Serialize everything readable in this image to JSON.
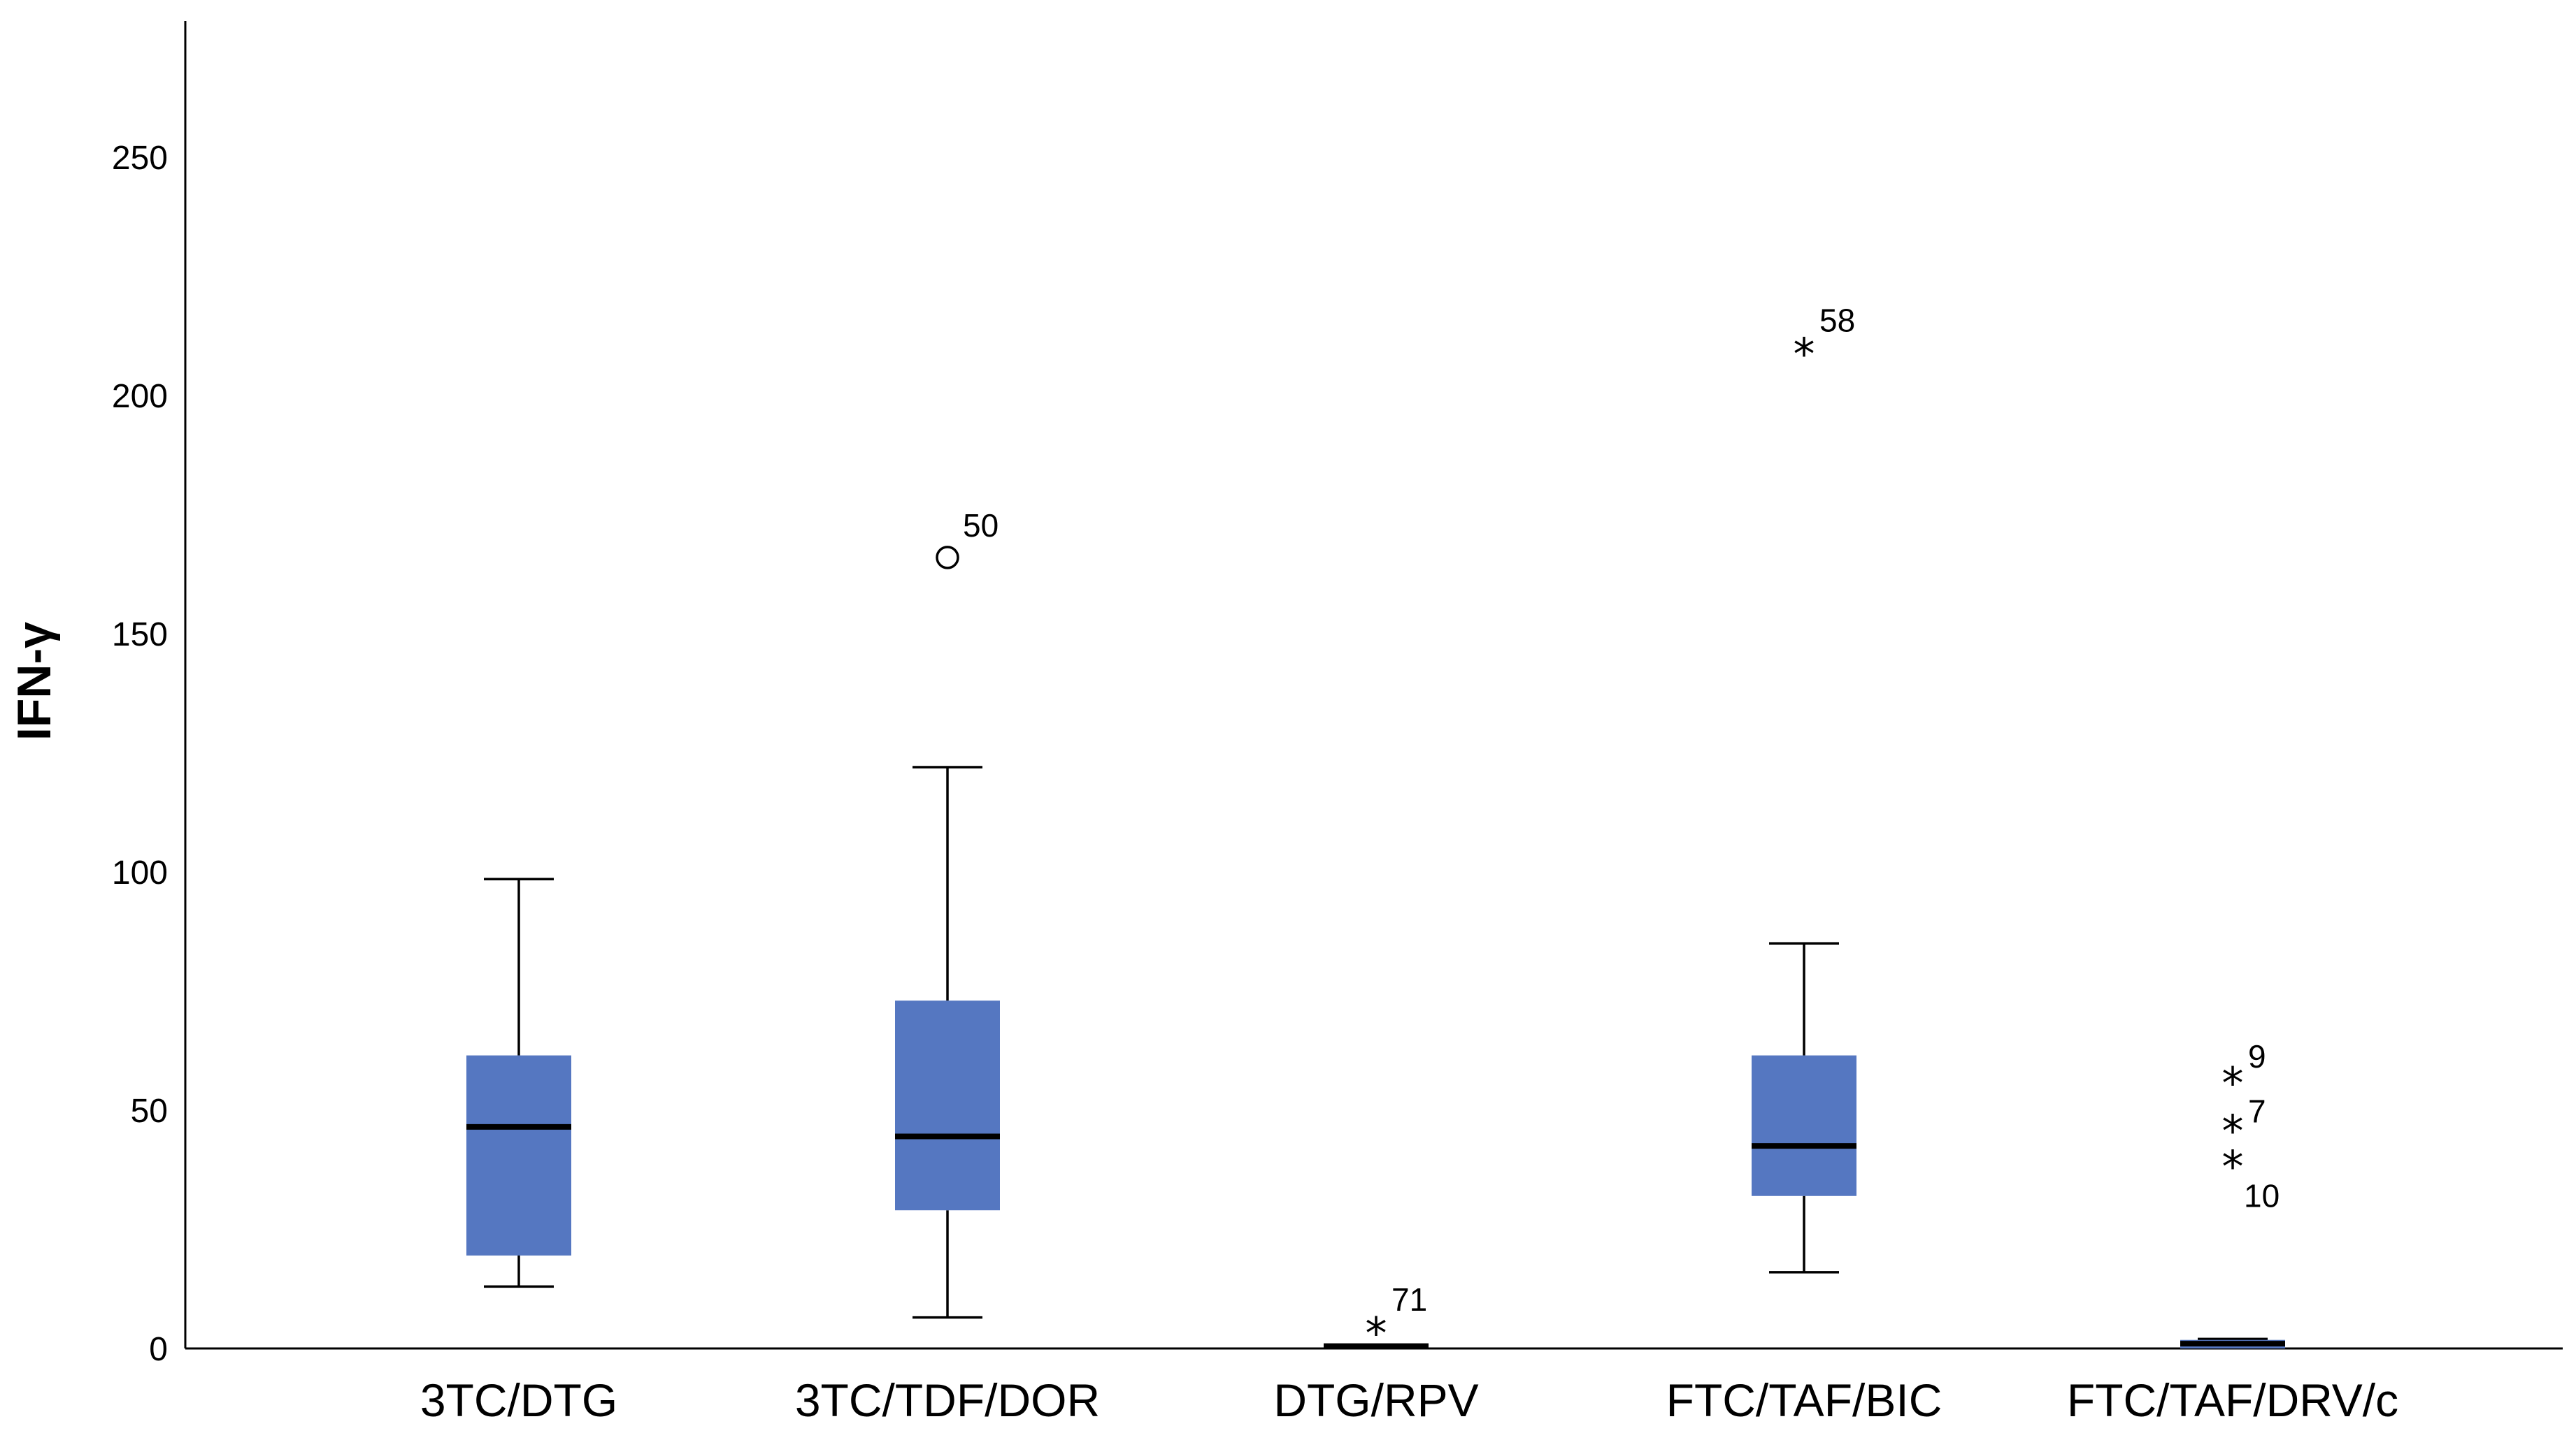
{
  "chart_data": {
    "type": "boxplot",
    "title": "",
    "xlabel": "",
    "ylabel": "IFN-γ",
    "ylim": [
      0,
      275
    ],
    "yticks": [
      0,
      50,
      100,
      150,
      200,
      250
    ],
    "grid": false,
    "box_color": "#5577C1",
    "groups": [
      {
        "name": "3TC/DTG",
        "min": 13,
        "q1": 19.5,
        "median": 46.5,
        "q3": 61.5,
        "max": 98.5,
        "outliers": []
      },
      {
        "name": "3TC/TDF/DOR",
        "min": 6.5,
        "q1": 29,
        "median": 44.5,
        "q3": 73,
        "max": 122,
        "outliers": [
          {
            "value": 166,
            "label": "50",
            "marker": "circle"
          }
        ]
      },
      {
        "name": "DTG/RPV",
        "min": 0,
        "q1": 0,
        "median": 0.5,
        "q3": 0.8,
        "max": 0.8,
        "outliers": [
          {
            "value": 3.5,
            "label": "71",
            "marker": "star"
          }
        ]
      },
      {
        "name": "FTC/TAF/BIC",
        "min": 16,
        "q1": 32,
        "median": 42.5,
        "q3": 61.5,
        "max": 85,
        "outliers": [
          {
            "value": 209,
            "label": "58",
            "marker": "star"
          }
        ]
      },
      {
        "name": "FTC/TAF/DRV/c",
        "min": 0,
        "q1": 0,
        "median": 1,
        "q3": 1.8,
        "max": 2,
        "outliers": [
          {
            "value": 56,
            "label": "9",
            "marker": "star"
          },
          {
            "value": 46,
            "label": "7",
            "marker": "star"
          },
          {
            "value": 38.5,
            "label": "10",
            "marker": "star"
          }
        ]
      }
    ]
  }
}
